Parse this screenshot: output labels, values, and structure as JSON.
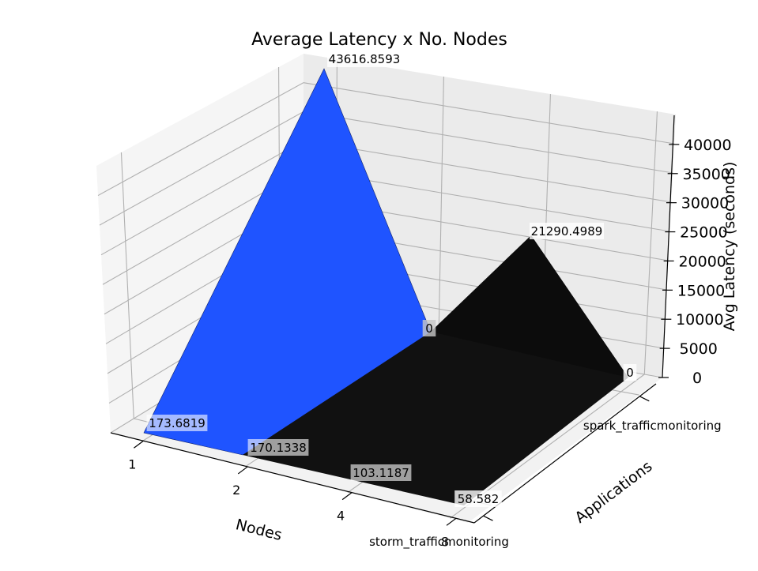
{
  "chart_data": {
    "type": "surface3d",
    "title": "Average Latency x No. Nodes",
    "xlabel": "Nodes",
    "ylabel": "Applications",
    "zlabel": "Avg Latency (seconds)",
    "x_ticks": [
      "1",
      "2",
      "4",
      "8"
    ],
    "y_ticks": [
      "storm_trafficmonitoring",
      "spark_trafficmonitoring"
    ],
    "z_ticks": [
      "0",
      "5000",
      "10000",
      "15000",
      "20000",
      "25000",
      "30000",
      "35000",
      "40000"
    ],
    "zlim": [
      0,
      43616.8593
    ],
    "series": [
      {
        "name": "",
        "color": "#1f54ff",
        "app": "storm_trafficmonitoring",
        "values": [
          173.6819,
          170.1338,
          103.1187,
          58.582
        ]
      },
      {
        "name": "",
        "color": "#000000",
        "app": "spark_trafficmonitoring",
        "values": [
          43616.8593,
          0,
          21290.4989,
          0
        ]
      }
    ],
    "data_labels": [
      "173.6819",
      "170.1338",
      "103.1187",
      "58.582",
      "43616.8593",
      "0",
      "21290.4989",
      "0"
    ],
    "grid": true
  }
}
